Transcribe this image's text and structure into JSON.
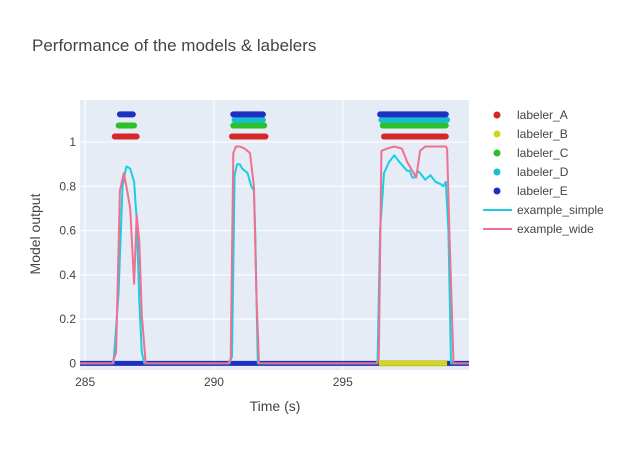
{
  "chart_data": {
    "type": "line",
    "title": "Performance of the models & labelers",
    "xlabel": "Time (s)",
    "ylabel": "Model output",
    "xlim": [
      284.8,
      299.9
    ],
    "ylim": [
      -0.03,
      1.19
    ],
    "x_ticks": [
      285,
      290,
      295
    ],
    "y_ticks": [
      0,
      0.2,
      0.4,
      0.6,
      0.8,
      1
    ],
    "grid": true,
    "plot_background": "#E5ECF6",
    "legend_position": "right",
    "labelers": [
      {
        "name": "labeler_A",
        "color": "#D62728",
        "level": 1.025,
        "on": [
          [
            286.15,
            287.0
          ],
          [
            290.7,
            292.0
          ],
          [
            296.6,
            299.0
          ]
        ]
      },
      {
        "name": "labeler_B",
        "color": "#D4D420",
        "level": 0.0,
        "on": [
          [
            296.4,
            299.05
          ]
        ]
      },
      {
        "name": "labeler_C",
        "color": "#2CC02C",
        "level": 1.075,
        "on": [
          [
            286.3,
            286.9
          ],
          [
            290.75,
            291.95
          ],
          [
            296.55,
            299.0
          ]
        ]
      },
      {
        "name": "labeler_D",
        "color": "#17BECF",
        "level": 1.1,
        "on": [
          [
            290.8,
            291.9
          ],
          [
            296.5,
            299.05
          ]
        ]
      },
      {
        "name": "labeler_E",
        "color": "#1F2FC0",
        "level": 1.125,
        "on": [
          [
            286.35,
            286.85
          ],
          [
            290.75,
            291.9
          ],
          [
            296.45,
            299.0
          ]
        ]
      }
    ],
    "series": [
      {
        "name": "example_simple",
        "color": "#17CFE0",
        "x": [
          284.8,
          286.1,
          286.3,
          286.45,
          286.6,
          286.75,
          286.9,
          287.0,
          287.1,
          287.2,
          287.3,
          287.45,
          290.6,
          290.7,
          290.8,
          290.9,
          291.0,
          291.1,
          291.3,
          291.45,
          291.55,
          291.6,
          291.7,
          291.85,
          296.35,
          296.45,
          296.6,
          296.8,
          297.0,
          297.2,
          297.35,
          297.5,
          297.6,
          297.7,
          297.8,
          297.9,
          298.0,
          298.2,
          298.4,
          298.6,
          298.8,
          298.9,
          299.0,
          299.1,
          299.2,
          299.4,
          299.9
        ],
        "values": [
          0.0,
          0.0,
          0.32,
          0.8,
          0.89,
          0.88,
          0.82,
          0.65,
          0.28,
          0.05,
          0.0,
          0.0,
          0.0,
          0.03,
          0.85,
          0.9,
          0.9,
          0.88,
          0.86,
          0.8,
          0.78,
          0.6,
          0.0,
          0.0,
          0.0,
          0.6,
          0.86,
          0.91,
          0.94,
          0.91,
          0.89,
          0.87,
          0.87,
          0.84,
          0.84,
          0.87,
          0.86,
          0.83,
          0.85,
          0.82,
          0.81,
          0.8,
          0.82,
          0.6,
          0.0,
          0.0,
          0.0
        ]
      },
      {
        "name": "example_wide",
        "color": "#F07090",
        "x": [
          284.8,
          286.05,
          286.2,
          286.35,
          286.5,
          286.6,
          286.75,
          286.9,
          287.0,
          287.1,
          287.2,
          287.35,
          287.45,
          290.55,
          290.65,
          290.75,
          290.85,
          291.0,
          291.2,
          291.4,
          291.55,
          291.65,
          291.75,
          296.3,
          296.4,
          296.5,
          296.7,
          297.0,
          297.3,
          297.5,
          297.7,
          297.85,
          298.0,
          298.2,
          298.5,
          298.8,
          299.0,
          299.05,
          299.15,
          299.3,
          299.9
        ],
        "values": [
          0.0,
          0.0,
          0.05,
          0.78,
          0.86,
          0.8,
          0.7,
          0.36,
          0.67,
          0.55,
          0.22,
          0.0,
          0.0,
          0.0,
          0.02,
          0.95,
          0.98,
          0.98,
          0.97,
          0.95,
          0.8,
          0.3,
          0.0,
          0.0,
          0.02,
          0.96,
          0.97,
          0.98,
          0.97,
          0.91,
          0.87,
          0.84,
          0.96,
          0.98,
          0.98,
          0.98,
          0.98,
          0.97,
          0.55,
          0.0,
          0.0
        ]
      }
    ]
  }
}
